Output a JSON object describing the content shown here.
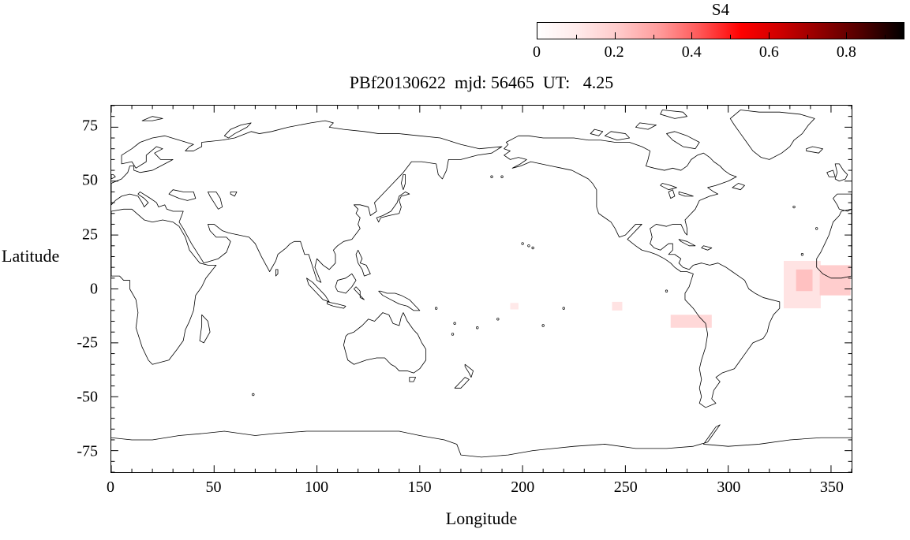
{
  "chart_data": {
    "type": "heatmap",
    "title": "PBf20130622  mjd: 56465  UT:   4.25",
    "xlabel": "Longitude",
    "ylabel": "Latitude",
    "xlim": [
      0,
      360
    ],
    "ylim": [
      -85,
      85
    ],
    "x_ticks": [
      0,
      50,
      100,
      150,
      200,
      250,
      300,
      350
    ],
    "x_tick_labels": [
      "0",
      "50",
      "100",
      "150",
      "200",
      "250",
      "300",
      "350"
    ],
    "x_minor_step": 10,
    "y_ticks": [
      -75,
      -50,
      -25,
      0,
      25,
      50,
      75
    ],
    "y_tick_labels": [
      "-75",
      "-50",
      "-25",
      "0",
      "25",
      "50",
      "75"
    ],
    "y_minor_step": 5,
    "grid": false,
    "basemap": "world coastlines, plate carree, longitude 0-360 (Pacific centered)",
    "colorbar": {
      "label": "S4",
      "min": 0,
      "max": 0.95,
      "ticks": [
        0,
        0.2,
        0.4,
        0.6,
        0.8
      ],
      "tick_labels": [
        "0",
        "0.2",
        "0.4",
        "0.6",
        "0.8"
      ],
      "colormap": "white-red-black",
      "gradient": [
        "#ffffff",
        "#ffeaea",
        "#ffcaca",
        "#ff9b9b",
        "#ff5656",
        "#ff0000",
        "#cc0000",
        "#8e0000",
        "#4d0000",
        "#000000"
      ],
      "position": "top-right-horizontal"
    },
    "points": [
      {
        "lon": 336,
        "lat": 2,
        "w": 18,
        "h": 22,
        "s4": 0.05
      },
      {
        "lon": 352,
        "lat": 4,
        "w": 15,
        "h": 14,
        "s4": 0.09
      },
      {
        "lon": 337,
        "lat": 4,
        "w": 8,
        "h": 10,
        "s4": 0.11
      },
      {
        "lon": 282,
        "lat": -15,
        "w": 20,
        "h": 6,
        "s4": 0.07
      },
      {
        "lon": 246,
        "lat": -8,
        "w": 5,
        "h": 4,
        "s4": 0.05
      },
      {
        "lon": 196,
        "lat": -8,
        "w": 4,
        "h": 3,
        "s4": 0.04
      }
    ]
  }
}
